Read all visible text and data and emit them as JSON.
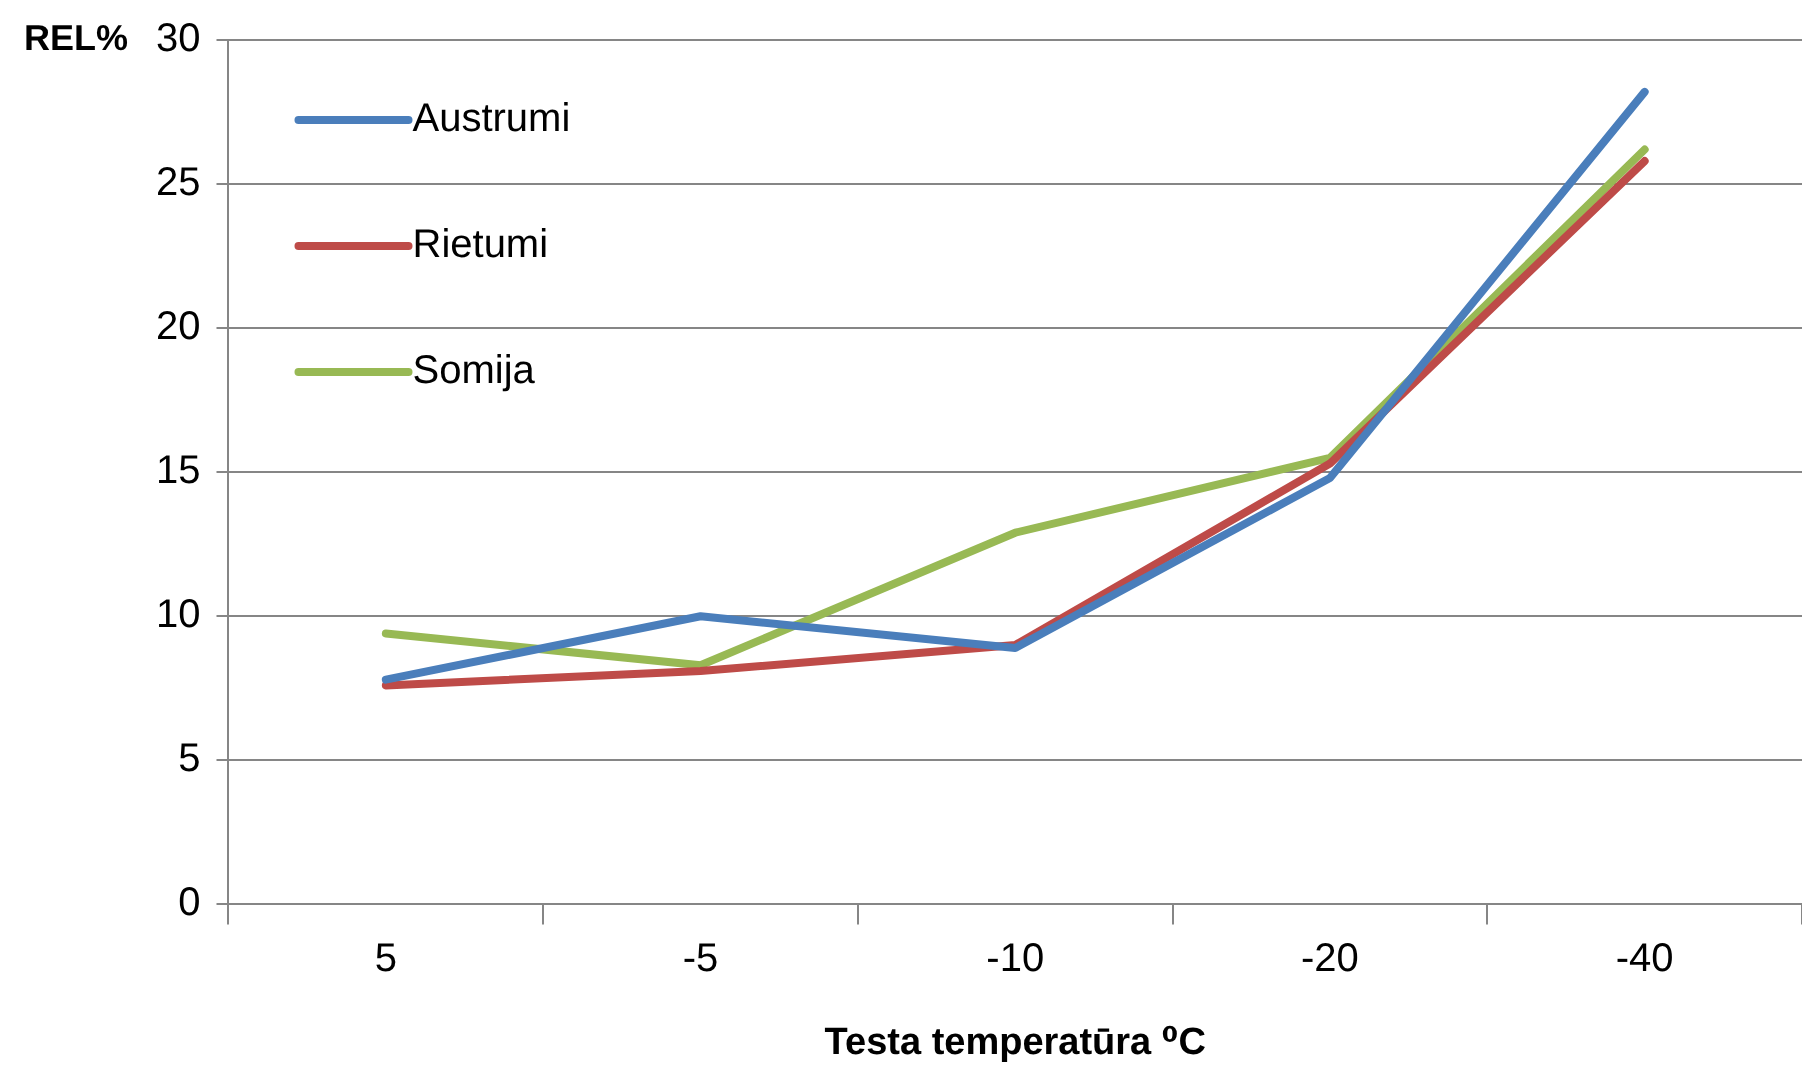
{
  "chart_data": {
    "type": "line",
    "xlabel": "Testa temperatūra ⁰C",
    "ylabel": "REL%",
    "categories": [
      "5",
      "-5",
      "-10",
      "-20",
      "-40"
    ],
    "series": [
      {
        "name": "Austrumi",
        "color": "#4a7ebb",
        "values": [
          7.8,
          10.0,
          8.9,
          14.8,
          28.2
        ]
      },
      {
        "name": "Rietumi",
        "color": "#be4b48",
        "values": [
          7.6,
          8.1,
          9.0,
          15.3,
          25.8
        ]
      },
      {
        "name": "Somija",
        "color": "#98b954",
        "values": [
          9.4,
          8.3,
          12.9,
          15.5,
          26.2
        ]
      }
    ],
    "ylim": [
      0,
      30
    ],
    "yticks": [
      0,
      5,
      10,
      15,
      20,
      25,
      30
    ],
    "grid": "y",
    "legend": "top left",
    "marker": "none",
    "line_style": "solid"
  }
}
